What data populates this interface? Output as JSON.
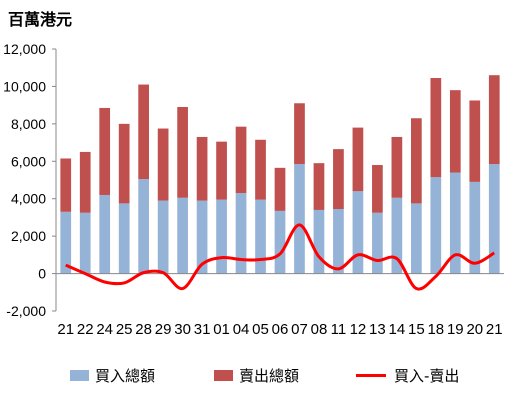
{
  "unit_label": "百萬港元",
  "chart_data": {
    "type": "bar",
    "stacked": true,
    "categories": [
      "21",
      "22",
      "24",
      "25",
      "28",
      "29",
      "30",
      "31",
      "01",
      "04",
      "05",
      "06",
      "07",
      "08",
      "11",
      "12",
      "13",
      "14",
      "15",
      "18",
      "19",
      "20",
      "21"
    ],
    "series": [
      {
        "name": "買入總額",
        "type": "bar",
        "color": "#95b3d7",
        "values": [
          3300,
          3250,
          4200,
          3750,
          5050,
          3900,
          4050,
          3900,
          3950,
          4300,
          3950,
          3350,
          5850,
          3400,
          3450,
          4400,
          3250,
          4050,
          3750,
          5150,
          5400,
          4900,
          5850
        ]
      },
      {
        "name": "賣出總額",
        "type": "bar",
        "color": "#c0504d",
        "values": [
          2850,
          3250,
          4650,
          4250,
          5050,
          3850,
          4850,
          3400,
          3100,
          3550,
          3200,
          2300,
          3250,
          2500,
          3200,
          3400,
          2550,
          3250,
          4550,
          5300,
          4400,
          4350,
          4750
        ]
      },
      {
        "name": "買入-賣出",
        "type": "line",
        "color": "#ff0000",
        "values": [
          450,
          0,
          -450,
          -500,
          50,
          50,
          -800,
          500,
          850,
          750,
          750,
          1050,
          2600,
          900,
          250,
          1000,
          700,
          800,
          -800,
          -150,
          1000,
          550,
          1100
        ]
      }
    ],
    "yaxis": {
      "min": -2000,
      "max": 12000,
      "step": 2000,
      "tick_labels": [
        "-2,000",
        "0",
        "2,000",
        "4,000",
        "6,000",
        "8,000",
        "10,000",
        "12,000"
      ]
    },
    "legend_position": "bottom",
    "grid": false
  }
}
